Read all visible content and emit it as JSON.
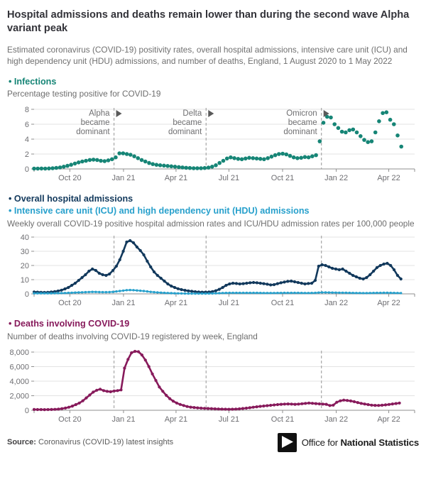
{
  "page": {
    "title": "Hospital admissions and deaths remain lower than during the second wave Alpha variant peak",
    "subtitle": "Estimated coronavirus (COVID-19) positivity rates, overall hospital admissions, intensive care unit (ICU) and high dependency unit (HDU) admissions, and number of deaths, England, 1 August 2020 to 1 May 2022",
    "source_label": "Source:",
    "source_text": "Coronavirus (COVID-19) latest insights",
    "logo": {
      "office_for": "Office for",
      "national_statistics": "National Statistics"
    }
  },
  "colors": {
    "teal": "#168576",
    "navy": "#12395C",
    "light_blue": "#27A0CC",
    "maroon": "#871A5B",
    "grid": "#e3e3e3",
    "axis": "#8f8f8f",
    "tick_label": "#6e6e72",
    "annotation_text": "#6f6f71",
    "annotation_line": "#a8a8a8",
    "annotation_arrow": "#5a5a5a"
  },
  "sections": [
    {
      "headings": [
        {
          "label": "• Infections",
          "color": "#168576"
        }
      ],
      "sublabel": "Percentage testing positive for COVID-19"
    },
    {
      "headings": [
        {
          "label": "• Overall hospital admissions",
          "color": "#12395C"
        },
        {
          "label": "• Intensive care unit (ICU) and high dependency unit (HDU) admissions",
          "color": "#27A0CC"
        }
      ],
      "sublabel": "Weekly overall COVID-19 positive hospital admission rates and ICU/HDU admission rates per 100,000 people"
    },
    {
      "headings": [
        {
          "label": "• Deaths involving COVID-19",
          "color": "#871A5B"
        }
      ],
      "sublabel": "Number of deaths involving COVID-19 registered by week, England"
    }
  ],
  "chart_data": [
    {
      "type": "scatter",
      "title": "Infections",
      "ylabel": "Percentage testing positive for COVID-19",
      "xlabel": "",
      "x_range": "1 August 2020 to 1 May 2022, weekly",
      "ylim": [
        0,
        8
      ],
      "grid": true,
      "layout": {
        "height": 118,
        "top": 12,
        "bottom": 22
      },
      "yticks": [
        {
          "v": 0,
          "l": "0"
        },
        {
          "v": 2,
          "l": "2"
        },
        {
          "v": 4,
          "l": "4"
        },
        {
          "v": 6,
          "l": "6"
        },
        {
          "v": 8,
          "l": "8"
        }
      ],
      "x_ticks": [
        {
          "f": 0.094,
          "l": "Oct 20"
        },
        {
          "f": 0.235,
          "l": "Jan 21"
        },
        {
          "f": 0.373,
          "l": "Apr 21"
        },
        {
          "f": 0.512,
          "l": "Jul 21"
        },
        {
          "f": 0.653,
          "l": "Oct 21"
        },
        {
          "f": 0.794,
          "l": "Jan 22"
        },
        {
          "f": 0.932,
          "l": "Apr 22"
        }
      ],
      "vlines": [
        0.21,
        0.452,
        0.755
      ],
      "annotations": [
        {
          "lines": [
            "Alpha",
            "became",
            "dominant"
          ],
          "f": 0.21
        },
        {
          "lines": [
            "Delta",
            "became",
            "dominant"
          ],
          "f": 0.452
        },
        {
          "lines": [
            "Omicron",
            "became",
            "dominant"
          ],
          "f": 0.755
        }
      ],
      "x_end": 0.965,
      "series": [
        {
          "name": "Percentage testing positive",
          "color": "#168576",
          "marker_only": true,
          "marker_radius": 2.8,
          "values": [
            0.05,
            0.05,
            0.06,
            0.05,
            0.07,
            0.1,
            0.14,
            0.2,
            0.3,
            0.42,
            0.56,
            0.72,
            0.88,
            1.0,
            1.1,
            1.2,
            1.25,
            1.2,
            1.1,
            1.05,
            1.15,
            1.3,
            1.55,
            2.1,
            2.1,
            2.0,
            1.9,
            1.7,
            1.45,
            1.2,
            1.0,
            0.8,
            0.65,
            0.55,
            0.5,
            0.45,
            0.4,
            0.35,
            0.3,
            0.25,
            0.2,
            0.15,
            0.12,
            0.1,
            0.1,
            0.1,
            0.12,
            0.18,
            0.3,
            0.5,
            0.8,
            1.1,
            1.4,
            1.55,
            1.45,
            1.35,
            1.3,
            1.4,
            1.5,
            1.45,
            1.4,
            1.35,
            1.3,
            1.45,
            1.65,
            1.85,
            2.0,
            2.05,
            1.95,
            1.75,
            1.55,
            1.45,
            1.5,
            1.6,
            1.55,
            1.7,
            1.85,
            3.7,
            6.2,
            7.0,
            6.9,
            6.0,
            5.5,
            5.0,
            4.9,
            5.2,
            5.3,
            4.9,
            4.4,
            3.9,
            3.6,
            3.7,
            4.9,
            6.4,
            7.5,
            7.6,
            6.6,
            6.0,
            4.5,
            3.0
          ]
        }
      ]
    },
    {
      "type": "line",
      "title": "Overall hospital admissions and ICU/HDU admissions",
      "ylabel": "Admission rate per 100,000 people",
      "xlabel": "",
      "x_range": "1 August 2020 to 1 May 2022, weekly",
      "ylim": [
        0,
        40
      ],
      "grid": true,
      "layout": {
        "height": 112,
        "top": 10,
        "bottom": 22
      },
      "yticks": [
        {
          "v": 0,
          "l": "0"
        },
        {
          "v": 10,
          "l": "10"
        },
        {
          "v": 20,
          "l": "20"
        },
        {
          "v": 30,
          "l": "30"
        },
        {
          "v": 40,
          "l": "40"
        }
      ],
      "x_ticks": [
        {
          "f": 0.094,
          "l": "Oct 20"
        },
        {
          "f": 0.235,
          "l": "Jan 21"
        },
        {
          "f": 0.373,
          "l": "Apr 21"
        },
        {
          "f": 0.512,
          "l": "Jul 21"
        },
        {
          "f": 0.653,
          "l": "Oct 21"
        },
        {
          "f": 0.794,
          "l": "Jan 22"
        },
        {
          "f": 0.932,
          "l": "Apr 22"
        }
      ],
      "vlines": [
        0.21,
        0.452,
        0.755
      ],
      "x_end": 0.964,
      "series": [
        {
          "name": "Overall hospital admissions",
          "color": "#12395C",
          "line_width": 2.6,
          "marker_radius": 2.1,
          "values": [
            1.3,
            1.2,
            1.1,
            1.0,
            1.1,
            1.3,
            1.6,
            2.0,
            2.6,
            3.5,
            4.5,
            6.0,
            7.5,
            9.5,
            11.5,
            13.5,
            16.0,
            17.5,
            16.5,
            14.5,
            13.5,
            13.0,
            14.0,
            16.5,
            19.5,
            24.0,
            30.0,
            36.5,
            37.5,
            36.0,
            33.0,
            30.5,
            27.5,
            23.0,
            19.0,
            15.5,
            13.0,
            11.0,
            9.0,
            7.0,
            5.5,
            4.5,
            3.6,
            3.0,
            2.5,
            2.1,
            1.8,
            1.5,
            1.3,
            1.2,
            1.2,
            1.3,
            1.6,
            2.2,
            3.2,
            4.5,
            6.0,
            7.0,
            7.5,
            7.3,
            7.0,
            7.2,
            7.5,
            7.8,
            8.0,
            7.8,
            7.5,
            7.2,
            6.8,
            6.3,
            6.5,
            7.2,
            7.8,
            8.3,
            8.8,
            9.0,
            8.5,
            8.0,
            7.5,
            7.0,
            7.3,
            7.5,
            9.5,
            19.5,
            20.5,
            20.0,
            19.0,
            18.0,
            17.5,
            17.0,
            17.5,
            16.0,
            14.5,
            13.0,
            12.0,
            11.0,
            10.5,
            11.5,
            13.5,
            16.0,
            18.5,
            20.0,
            21.0,
            21.5,
            20.0,
            17.0,
            13.0,
            10.5
          ]
        },
        {
          "name": "ICU and HDU admissions",
          "color": "#27A0CC",
          "line_width": 1.8,
          "marker_radius": 1.7,
          "values": [
            0.4,
            0.4,
            0.4,
            0.4,
            0.4,
            0.4,
            0.45,
            0.5,
            0.55,
            0.6,
            0.7,
            0.8,
            0.9,
            1.0,
            1.1,
            1.2,
            1.3,
            1.4,
            1.35,
            1.25,
            1.2,
            1.2,
            1.25,
            1.4,
            1.7,
            2.0,
            2.3,
            2.6,
            2.7,
            2.6,
            2.4,
            2.2,
            2.0,
            1.7,
            1.4,
            1.2,
            1.0,
            0.85,
            0.7,
            0.6,
            0.5,
            0.4,
            0.35,
            0.3,
            0.25,
            0.22,
            0.2,
            0.2,
            0.2,
            0.2,
            0.2,
            0.25,
            0.3,
            0.4,
            0.5,
            0.6,
            0.65,
            0.7,
            0.7,
            0.7,
            0.7,
            0.7,
            0.7,
            0.7,
            0.7,
            0.7,
            0.65,
            0.6,
            0.6,
            0.6,
            0.6,
            0.65,
            0.65,
            0.7,
            0.7,
            0.7,
            0.7,
            0.7,
            0.65,
            0.6,
            0.6,
            0.65,
            0.7,
            0.9,
            1.0,
            1.0,
            0.95,
            0.9,
            0.85,
            0.8,
            0.8,
            0.75,
            0.7,
            0.65,
            0.6,
            0.6,
            0.55,
            0.55,
            0.6,
            0.65,
            0.7,
            0.7,
            0.75,
            0.75,
            0.7,
            0.65,
            0.6,
            0.55
          ]
        }
      ]
    },
    {
      "type": "line",
      "title": "Deaths involving COVID-19",
      "ylabel": "Number of deaths registered by week",
      "xlabel": "",
      "x_range": "1 August 2020 to 1 May 2022, weekly",
      "ylim": [
        0,
        8000
      ],
      "grid": true,
      "layout": {
        "height": 116,
        "top": 12,
        "bottom": 22
      },
      "yticks": [
        {
          "v": 0,
          "l": "0"
        },
        {
          "v": 2000,
          "l": "2,000"
        },
        {
          "v": 4000,
          "l": "4,000"
        },
        {
          "v": 6000,
          "l": "6,000"
        },
        {
          "v": 8000,
          "l": "8,000"
        }
      ],
      "x_ticks": [
        {
          "f": 0.094,
          "l": "Oct 20"
        },
        {
          "f": 0.235,
          "l": "Jan 21"
        },
        {
          "f": 0.373,
          "l": "Apr 21"
        },
        {
          "f": 0.512,
          "l": "Jul 21"
        },
        {
          "f": 0.653,
          "l": "Oct 21"
        },
        {
          "f": 0.794,
          "l": "Jan 22"
        },
        {
          "f": 0.932,
          "l": "Apr 22"
        }
      ],
      "vlines": [
        0.21,
        0.452,
        0.755
      ],
      "x_end": 0.96,
      "series": [
        {
          "name": "Deaths involving COVID-19",
          "color": "#871A5B",
          "line_width": 2.6,
          "marker_radius": 2.1,
          "values": [
            110,
            100,
            95,
            90,
            100,
            110,
            130,
            160,
            220,
            300,
            420,
            580,
            780,
            1000,
            1300,
            1700,
            2100,
            2500,
            2750,
            2900,
            2700,
            2600,
            2550,
            2650,
            2700,
            2800,
            5800,
            7000,
            7900,
            8100,
            8050,
            7600,
            6900,
            6000,
            5000,
            4100,
            3200,
            2600,
            2050,
            1600,
            1250,
            1000,
            800,
            650,
            520,
            430,
            380,
            330,
            290,
            260,
            240,
            220,
            200,
            180,
            160,
            150,
            140,
            150,
            170,
            200,
            240,
            290,
            350,
            420,
            480,
            540,
            590,
            630,
            680,
            730,
            780,
            820,
            850,
            870,
            850,
            820,
            850,
            900,
            950,
            1000,
            960,
            920,
            880,
            850,
            820,
            650,
            700,
            1100,
            1300,
            1400,
            1350,
            1280,
            1180,
            1060,
            950,
            860,
            780,
            700,
            670,
            660,
            690,
            740,
            800,
            870,
            930,
            1000
          ]
        }
      ]
    }
  ]
}
